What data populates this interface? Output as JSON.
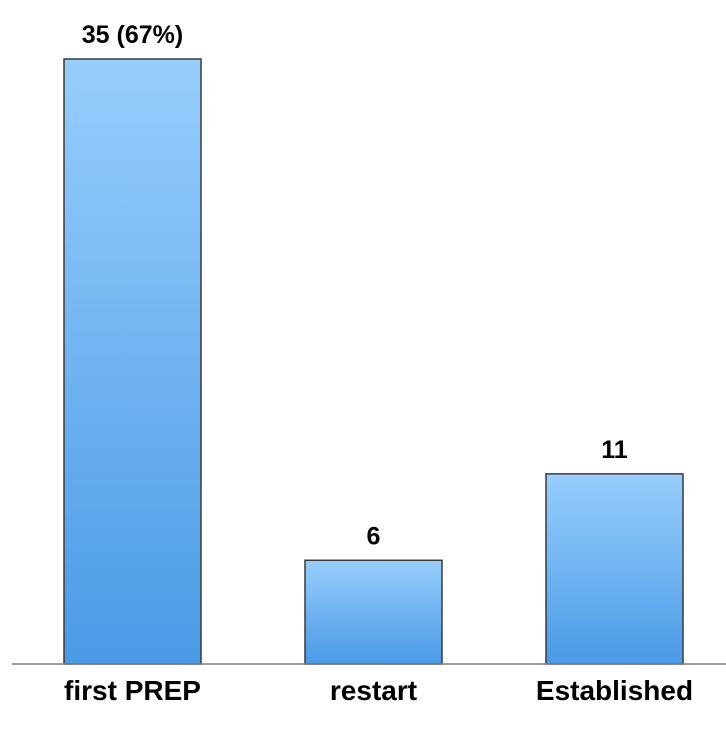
{
  "chart_data": {
    "type": "bar",
    "categories": [
      "first PREP",
      "restart",
      "Established"
    ],
    "values": [
      35,
      6,
      11
    ],
    "data_labels": [
      "35 (67%)",
      "6",
      "11"
    ],
    "title": "",
    "xlabel": "",
    "ylabel": "",
    "ylim": [
      0,
      35
    ],
    "grid": false,
    "legend": "none",
    "colors": {
      "bar_top": "#97CEFC",
      "bar_bottom": "#4A9AE6",
      "bar_stroke": "#3A3A3A",
      "axis": "#7F7F7F"
    }
  }
}
